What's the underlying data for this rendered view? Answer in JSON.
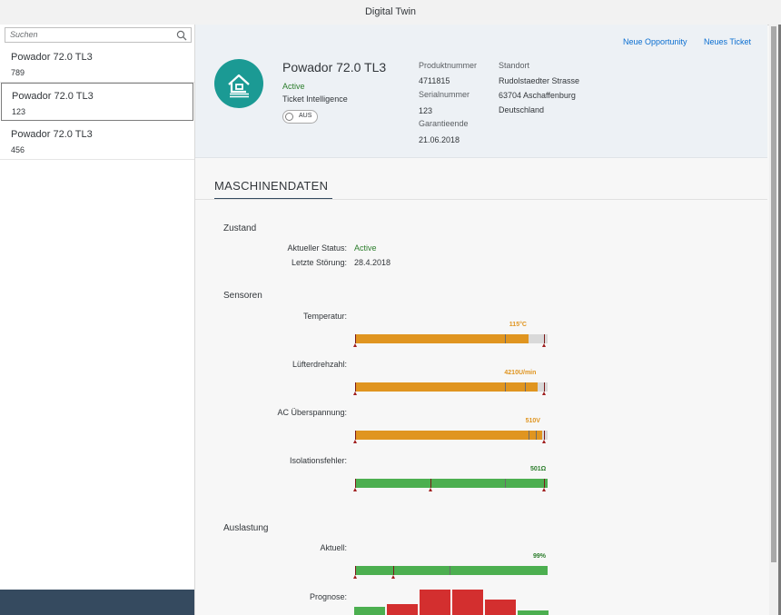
{
  "shell": {
    "title": "Digital Twin"
  },
  "search": {
    "placeholder": "Suchen"
  },
  "list": [
    {
      "title": "Powador 72.0 TL3",
      "desc": "789"
    },
    {
      "title": "Powador 72.0 TL3",
      "desc": "123"
    },
    {
      "title": "Powador 72.0 TL3",
      "desc": "456"
    }
  ],
  "header": {
    "actions": {
      "opportunity": "Neue Opportunity",
      "ticket": "Neues Ticket"
    },
    "title": "Powador 72.0 TL3",
    "status": "Active",
    "subtitle": "Ticket Intelligence",
    "switch_label": "AUS",
    "attributes": {
      "produktnummer_label": "Produktnummer",
      "produktnummer": "4711815",
      "serialnummer_label": "Serialnummer",
      "serialnummer": "123",
      "garantieende_label": "Garantieende",
      "garantieende": "21.06.2018",
      "standort_label": "Standort",
      "strasse": "Rudolstaedter Strasse",
      "ort": "63704 Aschaffenburg",
      "land": "Deutschland"
    }
  },
  "section": {
    "title": "MASCHINENDATEN",
    "zustand": {
      "title": "Zustand",
      "status_label": "Aktueller Status:",
      "status_value": "Active",
      "stoerung_label": "Letzte Störung:",
      "stoerung_value": "28.4.2018"
    },
    "sensoren": {
      "title": "Sensoren",
      "items": [
        {
          "label": "Temperatur:",
          "value_text": "115°C",
          "fill": 0.9,
          "color": "#e09520",
          "value_color": "#e09520",
          "thresholds": [
            0.78
          ],
          "markers": [
            0,
            0.98
          ]
        },
        {
          "label": "Lüfterdrehzahl:",
          "value_text": "4210U/min",
          "fill": 0.95,
          "color": "#e09520",
          "value_color": "#e09520",
          "thresholds": [
            0.78,
            0.88
          ],
          "markers": [
            0,
            0.98
          ]
        },
        {
          "label": "AC Überspannung:",
          "value_text": "510V",
          "fill": 0.97,
          "color": "#e09520",
          "value_color": "#e09520",
          "thresholds": [
            0.9,
            0.94
          ],
          "markers": [
            0,
            0.98
          ]
        },
        {
          "label": "Isolationsfehler:",
          "value_text": "501Ω",
          "fill": 1.0,
          "color": "#4caf50",
          "value_color": "#2b7d2b",
          "thresholds": [
            0.78
          ],
          "markers": [
            0,
            0.39,
            0.98
          ]
        }
      ]
    },
    "auslastung": {
      "title": "Auslastung",
      "aktuell_label": "Aktuell:",
      "aktuell": {
        "value_text": "99%",
        "fill": 1.0,
        "color": "#4caf50",
        "value_color": "#2b7d2b",
        "thresholds": [
          0.49
        ],
        "markers": [
          0,
          0.2
        ]
      },
      "prognose_label": "Prognose:",
      "prognose": [
        {
          "value": 0.25,
          "color": "#4caf50"
        },
        {
          "value": 0.33,
          "color": "#d32f2f"
        },
        {
          "value": 0.8,
          "color": "#d32f2f"
        },
        {
          "value": 0.8,
          "color": "#d32f2f"
        },
        {
          "value": 0.5,
          "color": "#d32f2f"
        },
        {
          "value": 0.15,
          "color": "#4caf50"
        }
      ]
    }
  },
  "colors": {
    "accent": "#1b9a94",
    "link": "#0a6ed1",
    "warning": "#e09520",
    "good": "#4caf50",
    "bad": "#d32f2f"
  }
}
